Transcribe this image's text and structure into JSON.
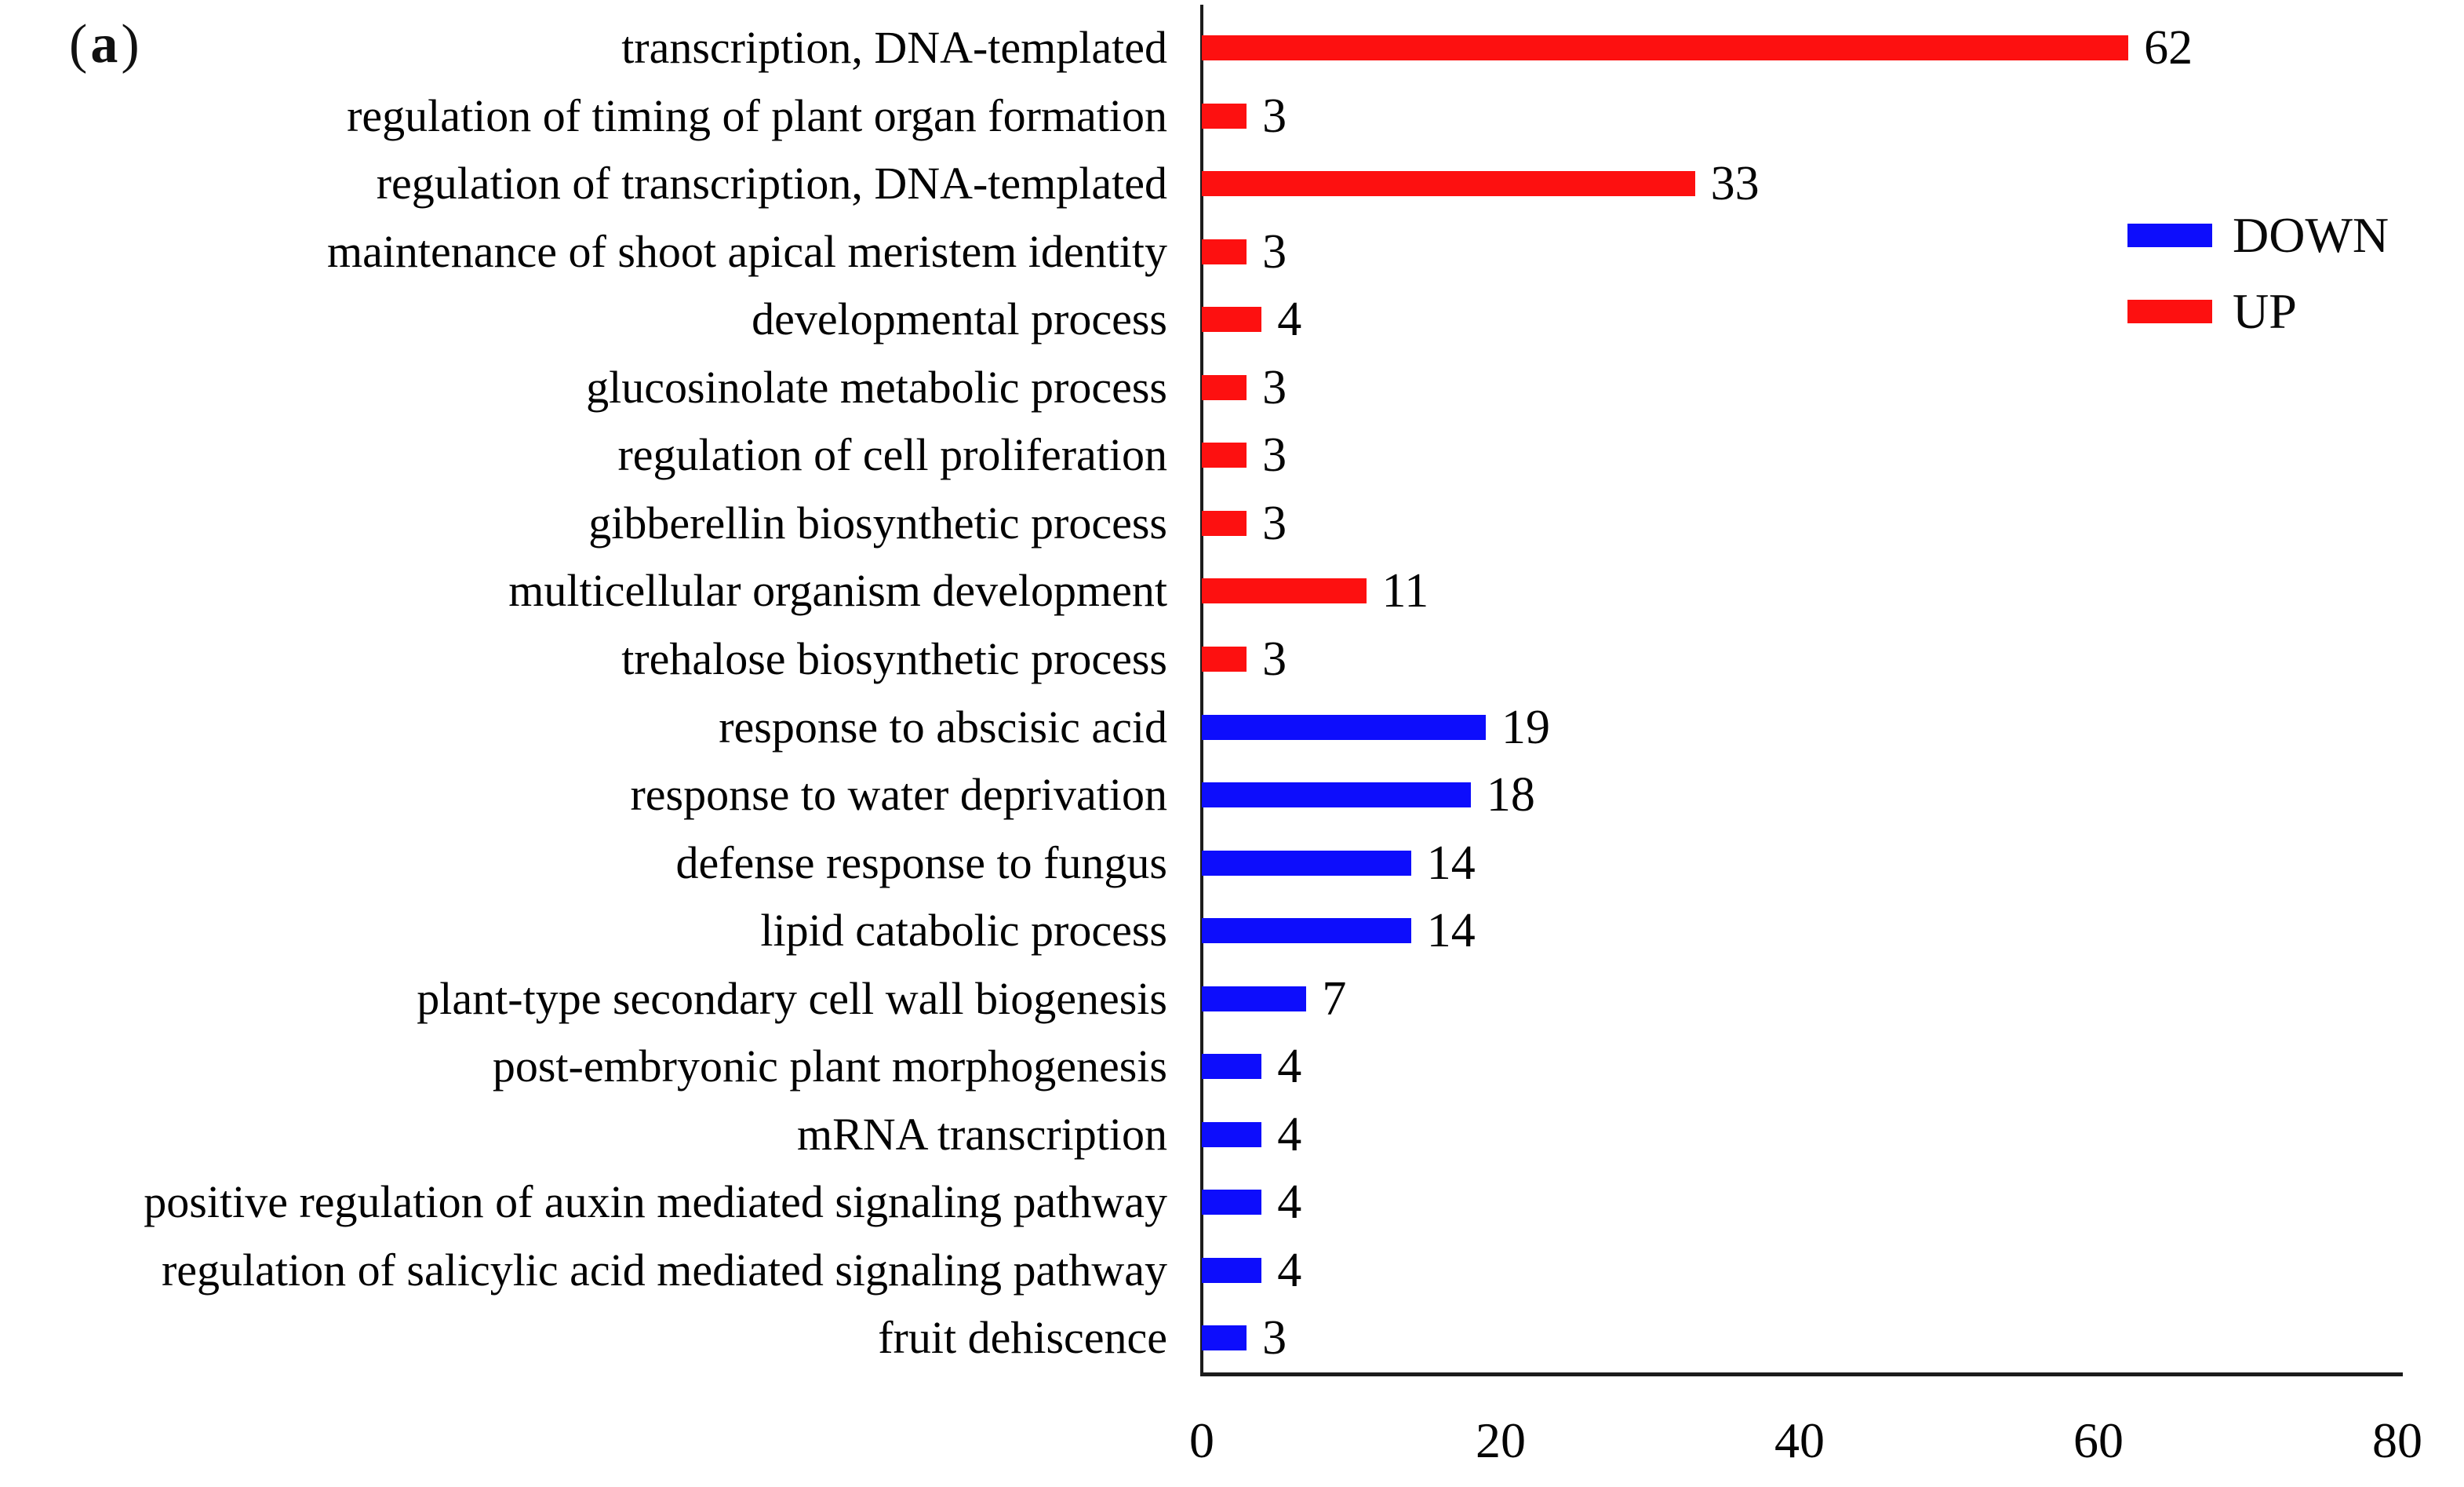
{
  "panel": {
    "open_paren": "(",
    "letter": "a",
    "close_paren": ")"
  },
  "colors": {
    "up": "#fd1010",
    "down": "#0d0dfc",
    "axis": "#1c1c1c"
  },
  "legend": {
    "position": "right",
    "items": [
      {
        "label": "DOWN",
        "color_key": "down"
      },
      {
        "label": "UP",
        "color_key": "up"
      }
    ]
  },
  "chart_data": {
    "type": "bar",
    "orientation": "horizontal",
    "title": "",
    "xlabel": "",
    "ylabel": "",
    "xlim": [
      0,
      80
    ],
    "xticks": [
      0,
      20,
      40,
      60,
      80
    ],
    "grid": false,
    "legend_position": "right",
    "value_labels_shown": true,
    "series_meaning": "GO term gene counts, UP-regulated (red) vs DOWN-regulated (blue)",
    "items": [
      {
        "category": "transcription, DNA-templated",
        "value": 62,
        "group": "UP"
      },
      {
        "category": "regulation of timing of plant organ formation",
        "value": 3,
        "group": "UP"
      },
      {
        "category": "regulation of transcription, DNA-templated",
        "value": 33,
        "group": "UP"
      },
      {
        "category": "maintenance of shoot apical meristem identity",
        "value": 3,
        "group": "UP"
      },
      {
        "category": "developmental process",
        "value": 4,
        "group": "UP"
      },
      {
        "category": "glucosinolate metabolic process",
        "value": 3,
        "group": "UP"
      },
      {
        "category": "regulation of cell proliferation",
        "value": 3,
        "group": "UP"
      },
      {
        "category": "gibberellin biosynthetic process",
        "value": 3,
        "group": "UP"
      },
      {
        "category": "multicellular organism development",
        "value": 11,
        "group": "UP"
      },
      {
        "category": "trehalose biosynthetic process",
        "value": 3,
        "group": "UP"
      },
      {
        "category": "response to abscisic acid",
        "value": 19,
        "group": "DOWN"
      },
      {
        "category": "response to water deprivation",
        "value": 18,
        "group": "DOWN"
      },
      {
        "category": "defense response to fungus",
        "value": 14,
        "group": "DOWN"
      },
      {
        "category": "lipid catabolic process",
        "value": 14,
        "group": "DOWN"
      },
      {
        "category": "plant-type secondary cell wall biogenesis",
        "value": 7,
        "group": "DOWN"
      },
      {
        "category": "post-embryonic plant morphogenesis",
        "value": 4,
        "group": "DOWN"
      },
      {
        "category": "mRNA transcription",
        "value": 4,
        "group": "DOWN"
      },
      {
        "category": "positive regulation of auxin mediated signaling pathway",
        "value": 4,
        "group": "DOWN"
      },
      {
        "category": "regulation of salicylic acid mediated signaling pathway",
        "value": 4,
        "group": "DOWN"
      },
      {
        "category": "fruit dehiscence",
        "value": 3,
        "group": "DOWN"
      }
    ]
  }
}
